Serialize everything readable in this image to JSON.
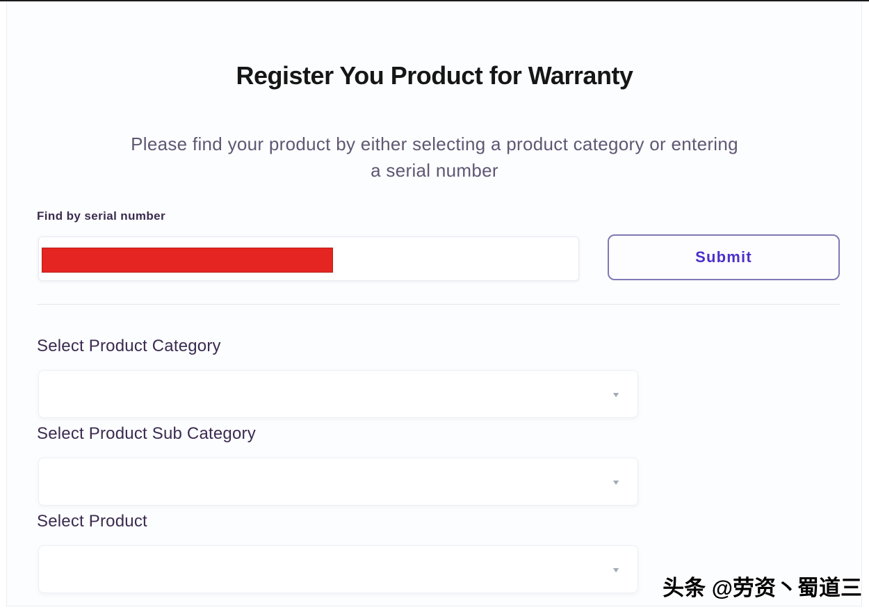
{
  "header": {
    "title": "Register You Product for Warranty",
    "subtitle_line1": "Please find your product by either selecting a product category or entering",
    "subtitle_line2": "a serial number"
  },
  "serial_section": {
    "label": "Find by serial number",
    "input_value": "",
    "input_redacted": true,
    "submit_label": "Submit"
  },
  "selects": [
    {
      "label": "Select Product Category",
      "value": ""
    },
    {
      "label": "Select Product Sub Category",
      "value": ""
    },
    {
      "label": "Select Product",
      "value": ""
    }
  ],
  "icons": {
    "chevron_down": "▼"
  },
  "watermark": {
    "text": "头条 @劳资丶蜀道三"
  },
  "colors": {
    "accent_purple": "#4b30ca",
    "redaction_red": "#e42521",
    "label_purple": "#3b2b50",
    "title_black": "#161616",
    "page_bg": "#fcfdfe"
  }
}
